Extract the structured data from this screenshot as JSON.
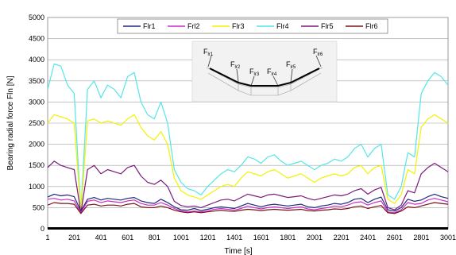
{
  "chart_data": {
    "type": "line",
    "xlabel": "Time [s]",
    "ylabel": "Bearing radial force Fln [N]",
    "xlim": [
      1,
      3001
    ],
    "ylim": [
      0,
      5000
    ],
    "x_ticks": [
      1,
      201,
      401,
      601,
      801,
      1001,
      1201,
      1401,
      1601,
      1801,
      2001,
      2201,
      2401,
      2601,
      2801,
      3001
    ],
    "y_ticks": [
      0,
      500,
      1000,
      1500,
      2000,
      2500,
      3000,
      3500,
      4000,
      4500,
      5000
    ],
    "grid": "horizontal",
    "legend_position": "top",
    "x": [
      1,
      50,
      100,
      150,
      200,
      250,
      300,
      350,
      400,
      450,
      500,
      550,
      600,
      650,
      700,
      750,
      800,
      850,
      900,
      950,
      1000,
      1050,
      1100,
      1150,
      1200,
      1250,
      1300,
      1350,
      1400,
      1450,
      1500,
      1550,
      1600,
      1650,
      1700,
      1750,
      1800,
      1850,
      1900,
      1950,
      2000,
      2050,
      2100,
      2150,
      2200,
      2250,
      2300,
      2350,
      2400,
      2450,
      2500,
      2550,
      2600,
      2650,
      2700,
      2750,
      2800,
      2850,
      2900,
      2950,
      3001
    ],
    "series": [
      {
        "name": "Flr1",
        "color": "#1f2a7a",
        "values": [
          750,
          820,
          780,
          800,
          760,
          420,
          700,
          740,
          680,
          720,
          700,
          680,
          720,
          740,
          660,
          620,
          600,
          700,
          620,
          520,
          450,
          440,
          480,
          430,
          460,
          500,
          520,
          500,
          480,
          540,
          600,
          560,
          520,
          560,
          580,
          560,
          540,
          560,
          580,
          520,
          500,
          540,
          560,
          600,
          580,
          620,
          700,
          720,
          620,
          700,
          750,
          450,
          420,
          500,
          700,
          650,
          680,
          760,
          820,
          760,
          720
        ]
      },
      {
        "name": "Frl2",
        "color": "#cc2bcc",
        "values": [
          700,
          720,
          680,
          700,
          660,
          380,
          650,
          680,
          620,
          660,
          640,
          620,
          660,
          680,
          600,
          560,
          560,
          620,
          560,
          480,
          420,
          400,
          420,
          400,
          420,
          460,
          480,
          460,
          440,
          480,
          540,
          500,
          470,
          500,
          520,
          500,
          480,
          500,
          520,
          470,
          450,
          480,
          500,
          540,
          520,
          560,
          620,
          640,
          560,
          620,
          660,
          400,
          380,
          450,
          620,
          580,
          600,
          680,
          720,
          680,
          640
        ]
      },
      {
        "name": "Flr3",
        "color": "#f2f200",
        "values": [
          2500,
          2700,
          2650,
          2600,
          2500,
          400,
          2550,
          2600,
          2500,
          2550,
          2500,
          2450,
          2600,
          2700,
          2400,
          2200,
          2100,
          2300,
          2000,
          1200,
          900,
          800,
          750,
          700,
          800,
          900,
          1000,
          1050,
          1000,
          1200,
          1350,
          1300,
          1250,
          1350,
          1400,
          1300,
          1200,
          1250,
          1300,
          1200,
          1100,
          1200,
          1250,
          1300,
          1250,
          1300,
          1450,
          1500,
          1300,
          1450,
          1500,
          700,
          600,
          800,
          1400,
          1300,
          2400,
          2600,
          2700,
          2600,
          2500
        ]
      },
      {
        "name": "Flr4",
        "color": "#55e6e6",
        "values": [
          3300,
          3900,
          3850,
          3400,
          3200,
          400,
          3300,
          3500,
          3100,
          3400,
          3300,
          3100,
          3600,
          3700,
          3000,
          2700,
          2600,
          3000,
          2500,
          1400,
          1100,
          950,
          900,
          800,
          1000,
          1150,
          1300,
          1400,
          1350,
          1500,
          1700,
          1650,
          1550,
          1700,
          1750,
          1600,
          1500,
          1550,
          1600,
          1500,
          1400,
          1500,
          1550,
          1650,
          1600,
          1700,
          1900,
          2000,
          1700,
          1900,
          2000,
          800,
          700,
          1000,
          1800,
          1700,
          3200,
          3500,
          3700,
          3600,
          3400
        ]
      },
      {
        "name": "Flr5",
        "color": "#7a1a7a",
        "values": [
          1450,
          1600,
          1500,
          1450,
          1400,
          380,
          1400,
          1500,
          1300,
          1400,
          1350,
          1300,
          1450,
          1500,
          1250,
          1100,
          1050,
          1150,
          1000,
          650,
          550,
          520,
          540,
          500,
          560,
          620,
          680,
          700,
          660,
          740,
          820,
          780,
          740,
          800,
          820,
          780,
          740,
          760,
          780,
          720,
          680,
          720,
          760,
          800,
          780,
          820,
          900,
          950,
          820,
          920,
          980,
          500,
          450,
          560,
          900,
          850,
          1300,
          1450,
          1550,
          1450,
          1350
        ]
      },
      {
        "name": "Flr6",
        "color": "#7a1414",
        "values": [
          560,
          620,
          600,
          600,
          580,
          360,
          560,
          580,
          540,
          560,
          560,
          540,
          580,
          600,
          520,
          500,
          500,
          540,
          500,
          440,
          400,
          380,
          400,
          380,
          400,
          420,
          440,
          420,
          410,
          440,
          460,
          450,
          430,
          450,
          460,
          450,
          440,
          450,
          460,
          430,
          420,
          440,
          450,
          470,
          460,
          480,
          520,
          540,
          480,
          520,
          550,
          380,
          360,
          420,
          520,
          500,
          540,
          580,
          620,
          600,
          580
        ]
      }
    ]
  },
  "inset": {
    "labels": [
      {
        "main": "F",
        "sub": "lr1"
      },
      {
        "main": "F",
        "sub": "lr2"
      },
      {
        "main": "F",
        "sub": "lr3"
      },
      {
        "main": "F",
        "sub": "lr4"
      },
      {
        "main": "F",
        "sub": "lr5"
      },
      {
        "main": "F",
        "sub": "lr6"
      }
    ]
  }
}
